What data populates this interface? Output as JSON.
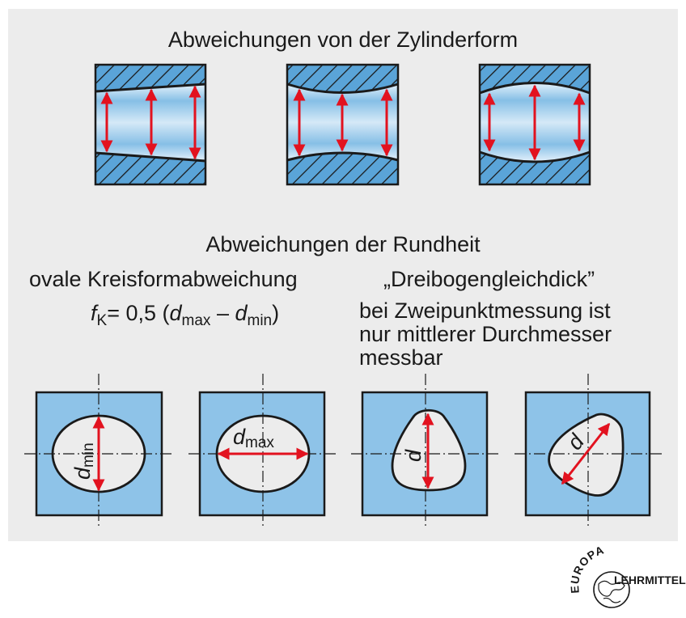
{
  "cylinder": {
    "title": "Abweichungen von der Zylinderform"
  },
  "roundness": {
    "title": "Abweichungen der Rundheit",
    "oval": {
      "label": "ovale Kreisformabweichung",
      "formula": {
        "f": "f",
        "f_sub": "K",
        "mid": "= 0,5 (",
        "d1": "d",
        "d1_sub": "max",
        "minus": " – ",
        "d2": "d",
        "d2_sub": "min",
        "close": ")"
      },
      "dim_min": {
        "d": "d",
        "sub": "min"
      },
      "dim_max": {
        "d": "d",
        "sub": "max"
      }
    },
    "drei": {
      "label": "„Dreibogengleichdick”",
      "description": "bei Zweipunktmessung ist\nnur mittlerer Durchmesser\nmessbar",
      "dim_d": "d"
    }
  },
  "logo": {
    "top_text": "EUROPA",
    "bottom_text": "LEHRMITTEL"
  },
  "colors": {
    "panel": "#ececec",
    "blue": "#8ec3e8",
    "arrow": "#e2121f",
    "hatch_fill": "#5aa4d8",
    "line": "#1a1a1a"
  }
}
